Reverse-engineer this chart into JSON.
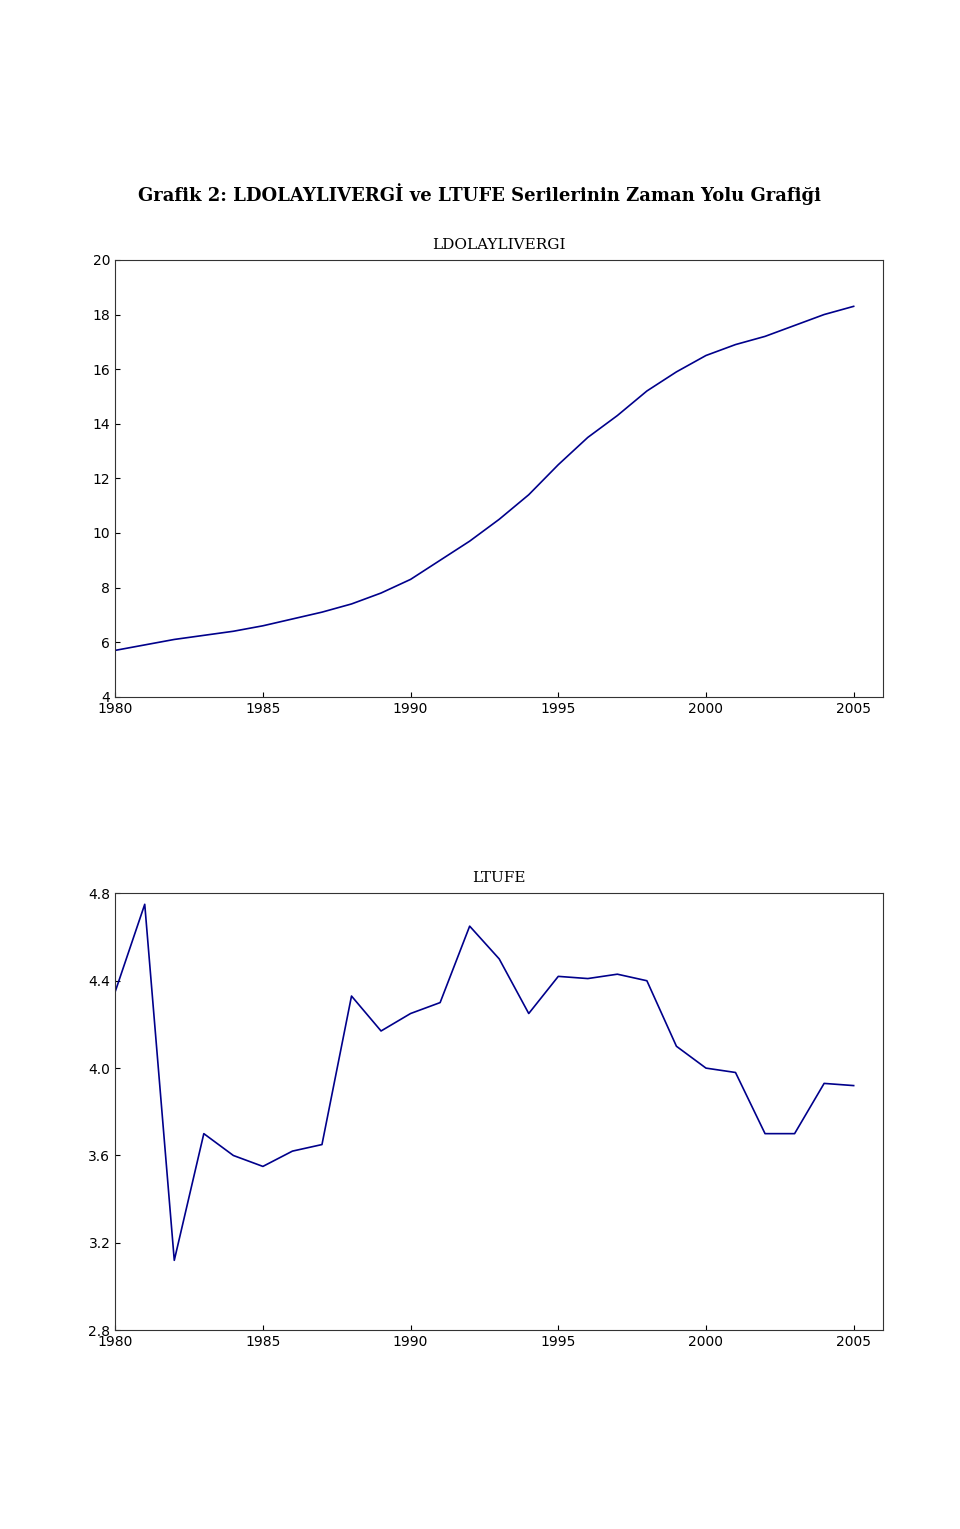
{
  "title": "Grafik 2: LDOLAYLIVERGİ ve LTUFE Serilerinin Zaman Yolu Grafiği",
  "title_fontsize": 13,
  "title_fontweight": "bold",
  "chart1_label": "LDOLAYLIVERGI",
  "chart1_ylim": [
    4,
    20
  ],
  "chart1_yticks": [
    4,
    6,
    8,
    10,
    12,
    14,
    16,
    18,
    20
  ],
  "chart1_xlim": [
    1980,
    2006
  ],
  "chart1_xticks": [
    1980,
    1985,
    1990,
    1995,
    2000,
    2005
  ],
  "chart1_years": [
    1980,
    1981,
    1982,
    1983,
    1984,
    1985,
    1986,
    1987,
    1988,
    1989,
    1990,
    1991,
    1992,
    1993,
    1994,
    1995,
    1996,
    1997,
    1998,
    1999,
    2000,
    2001,
    2002,
    2003,
    2004,
    2005
  ],
  "chart1_values": [
    5.7,
    5.9,
    6.1,
    6.25,
    6.4,
    6.6,
    6.85,
    7.1,
    7.4,
    7.8,
    8.3,
    9.0,
    9.7,
    10.5,
    11.4,
    12.5,
    13.5,
    14.3,
    15.2,
    15.9,
    16.5,
    16.9,
    17.2,
    17.6,
    18.0,
    18.3
  ],
  "chart2_label": "LTUFE",
  "chart2_ylim": [
    2.8,
    4.8
  ],
  "chart2_yticks": [
    2.8,
    3.2,
    3.6,
    4.0,
    4.4,
    4.8
  ],
  "chart2_xlim": [
    1980,
    2006
  ],
  "chart2_xticks": [
    1980,
    1985,
    1990,
    1995,
    2000,
    2005
  ],
  "chart2_years": [
    1980,
    1981,
    1982,
    1983,
    1984,
    1985,
    1986,
    1987,
    1988,
    1989,
    1990,
    1991,
    1992,
    1993,
    1994,
    1995,
    1996,
    1997,
    1998,
    1999,
    2000,
    2001,
    2002,
    2003,
    2004,
    2005
  ],
  "chart2_values": [
    4.35,
    4.75,
    3.12,
    3.7,
    3.6,
    3.55,
    3.62,
    3.65,
    4.33,
    4.17,
    4.25,
    4.3,
    4.65,
    4.5,
    4.25,
    4.42,
    4.41,
    4.43,
    4.4,
    4.1,
    4.0,
    3.98,
    3.7,
    3.7,
    3.93,
    3.92
  ],
  "line_color": "#00008B",
  "line_width": 1.2,
  "label_fontsize": 11,
  "tick_fontsize": 10,
  "bg_color": "#ffffff",
  "spine_color": "#333333"
}
